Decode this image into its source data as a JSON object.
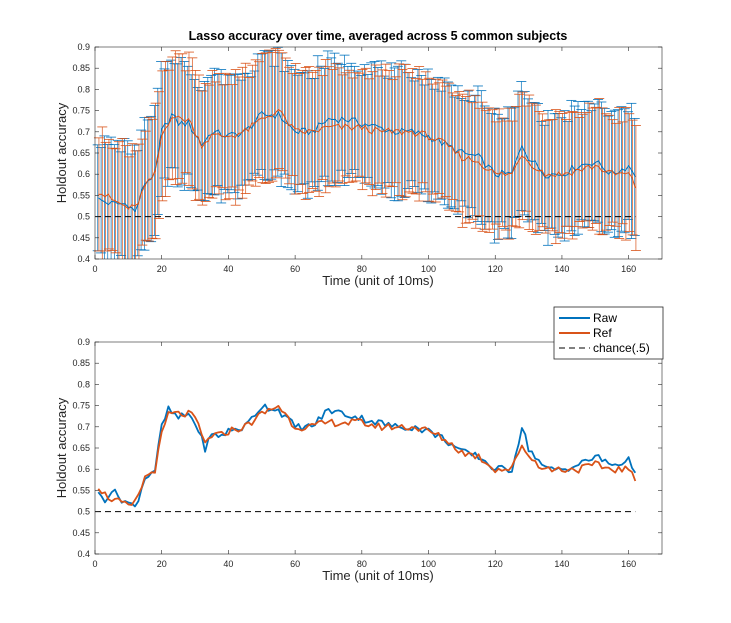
{
  "figure": {
    "title": "Lasso accuracy over time, averaged across 5 common subjects"
  },
  "colors": {
    "raw": "#0072BD",
    "ref": "#D95319",
    "chance": "#000000",
    "axis": "#262626"
  },
  "legend": {
    "placement": "top-right (lower panel, above axes)",
    "items": [
      {
        "label": "Raw",
        "style": "solid",
        "color_key": "raw"
      },
      {
        "label": "Ref",
        "style": "solid",
        "color_key": "ref"
      },
      {
        "label": "chance(.5)",
        "style": "dashed",
        "color_key": "chance"
      }
    ]
  },
  "chart_data": [
    {
      "type": "line",
      "panel": "top",
      "title": "Lasso accuracy over time, averaged across 5 common subjects",
      "xlabel": "Time (unit of 10ms)",
      "ylabel": "Holdout accuracy",
      "xlim": [
        0,
        170
      ],
      "ylim": [
        0.4,
        0.9
      ],
      "xticks": [
        "0",
        "20",
        "40",
        "60",
        "80",
        "100",
        "120",
        "140",
        "160"
      ],
      "yticks": [
        "0.4",
        "0.45",
        "0.5",
        "0.55",
        "0.6",
        "0.65",
        "0.7",
        "0.75",
        "0.8",
        "0.85",
        "0.9"
      ],
      "error_bars": true,
      "error_half_width_approx": 0.14,
      "chance_level": 0.5,
      "grid": false,
      "series": [
        {
          "key": "raw",
          "x_start": 1,
          "x_end": 162,
          "anchors_x": [
            1,
            5,
            10,
            12,
            15,
            18,
            20,
            23,
            25,
            28,
            32,
            35,
            40,
            45,
            50,
            55,
            60,
            65,
            70,
            75,
            80,
            85,
            90,
            95,
            100,
            105,
            110,
            115,
            120,
            125,
            128,
            130,
            135,
            140,
            145,
            150,
            155,
            160,
            162
          ],
          "anchors_y": [
            0.54,
            0.53,
            0.53,
            0.51,
            0.58,
            0.6,
            0.7,
            0.74,
            0.72,
            0.72,
            0.67,
            0.7,
            0.69,
            0.7,
            0.74,
            0.74,
            0.7,
            0.7,
            0.73,
            0.73,
            0.72,
            0.71,
            0.7,
            0.7,
            0.69,
            0.67,
            0.65,
            0.64,
            0.6,
            0.6,
            0.67,
            0.64,
            0.6,
            0.6,
            0.62,
            0.63,
            0.6,
            0.62,
            0.6
          ]
        },
        {
          "key": "ref",
          "x_start": 1,
          "x_end": 162,
          "anchors_x": [
            1,
            5,
            10,
            12,
            15,
            18,
            20,
            23,
            25,
            28,
            32,
            35,
            40,
            45,
            50,
            55,
            60,
            65,
            70,
            75,
            80,
            85,
            90,
            95,
            100,
            105,
            110,
            115,
            120,
            125,
            128,
            130,
            135,
            140,
            145,
            150,
            155,
            160,
            162
          ],
          "anchors_y": [
            0.56,
            0.54,
            0.52,
            0.52,
            0.57,
            0.6,
            0.69,
            0.74,
            0.73,
            0.73,
            0.67,
            0.69,
            0.69,
            0.7,
            0.73,
            0.75,
            0.7,
            0.7,
            0.71,
            0.71,
            0.71,
            0.7,
            0.7,
            0.7,
            0.69,
            0.67,
            0.64,
            0.63,
            0.6,
            0.6,
            0.65,
            0.63,
            0.6,
            0.6,
            0.61,
            0.62,
            0.6,
            0.6,
            0.57
          ]
        }
      ]
    },
    {
      "type": "line",
      "panel": "bottom",
      "title": "",
      "xlabel": "Time (unit of 10ms)",
      "ylabel": "Holdout accuracy",
      "xlim": [
        0,
        170
      ],
      "ylim": [
        0.4,
        0.9
      ],
      "xticks": [
        "0",
        "20",
        "40",
        "60",
        "80",
        "100",
        "120",
        "140",
        "160"
      ],
      "yticks": [
        "0.4",
        "0.45",
        "0.5",
        "0.55",
        "0.6",
        "0.65",
        "0.7",
        "0.75",
        "0.8",
        "0.85",
        "0.9"
      ],
      "chance_level": 0.5,
      "grid": false,
      "series": [
        {
          "name": "Raw",
          "key": "raw",
          "x_start": 1,
          "x_end": 162,
          "anchors_x": [
            1,
            3,
            5,
            8,
            10,
            12,
            15,
            18,
            20,
            22,
            25,
            28,
            30,
            33,
            35,
            38,
            40,
            45,
            50,
            55,
            60,
            65,
            70,
            75,
            80,
            85,
            90,
            95,
            100,
            105,
            110,
            115,
            120,
            125,
            128,
            130,
            135,
            140,
            145,
            150,
            155,
            160,
            162
          ],
          "anchors_y": [
            0.54,
            0.53,
            0.55,
            0.53,
            0.52,
            0.51,
            0.58,
            0.6,
            0.7,
            0.74,
            0.72,
            0.73,
            0.71,
            0.65,
            0.68,
            0.68,
            0.69,
            0.7,
            0.75,
            0.74,
            0.7,
            0.7,
            0.74,
            0.73,
            0.72,
            0.71,
            0.7,
            0.7,
            0.69,
            0.67,
            0.64,
            0.63,
            0.6,
            0.6,
            0.7,
            0.65,
            0.6,
            0.6,
            0.61,
            0.63,
            0.61,
            0.62,
            0.6
          ]
        },
        {
          "name": "Ref",
          "key": "ref",
          "x_start": 1,
          "x_end": 162,
          "anchors_x": [
            1,
            3,
            5,
            8,
            10,
            12,
            15,
            18,
            20,
            22,
            25,
            28,
            30,
            33,
            35,
            38,
            40,
            45,
            50,
            55,
            60,
            65,
            70,
            75,
            80,
            85,
            90,
            95,
            100,
            105,
            110,
            115,
            120,
            125,
            128,
            130,
            135,
            140,
            145,
            150,
            155,
            160,
            162
          ],
          "anchors_y": [
            0.56,
            0.54,
            0.53,
            0.52,
            0.51,
            0.52,
            0.58,
            0.6,
            0.68,
            0.73,
            0.73,
            0.73,
            0.72,
            0.66,
            0.68,
            0.68,
            0.69,
            0.7,
            0.73,
            0.75,
            0.7,
            0.7,
            0.71,
            0.71,
            0.71,
            0.7,
            0.7,
            0.7,
            0.69,
            0.67,
            0.64,
            0.63,
            0.6,
            0.6,
            0.66,
            0.63,
            0.6,
            0.6,
            0.6,
            0.61,
            0.6,
            0.6,
            0.57
          ]
        },
        {
          "name": "chance(.5)",
          "key": "chance",
          "style": "dashed",
          "x_start": 0,
          "x_end": 162,
          "anchors_x": [
            0,
            162
          ],
          "anchors_y": [
            0.5,
            0.5
          ]
        }
      ]
    }
  ]
}
